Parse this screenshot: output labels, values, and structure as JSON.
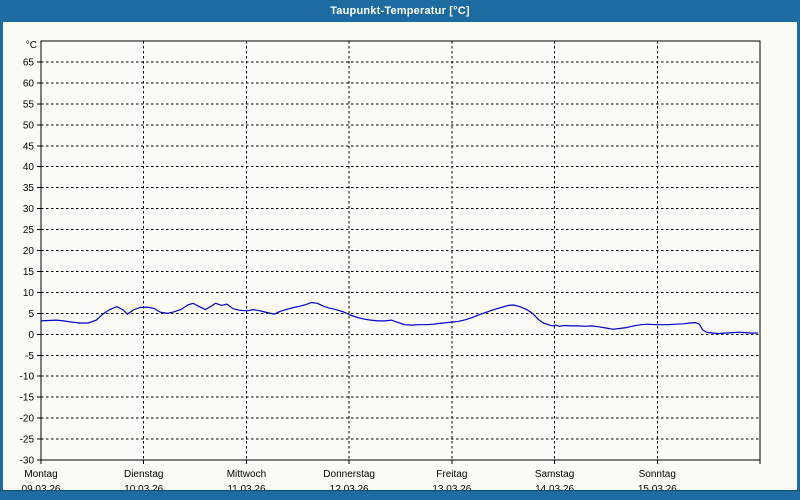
{
  "window": {
    "title": "Taupunkt-Temperatur [°C]",
    "titlebar_color": "#1c6ca2",
    "edge_color": "#1c6ca2",
    "strip_border_color": "#0e4a70",
    "background_color": "#fbfcf7"
  },
  "chart_data": {
    "type": "line",
    "title": "Taupunkt-Temperatur [°C]",
    "ylabel": "°C",
    "ylim": [
      -30,
      70
    ],
    "ytick_min": -30,
    "ytick_max": 65,
    "ytick_step": 5,
    "grid": "dashed",
    "legend_position": "none",
    "axis_color": "#000000",
    "xlim_days": [
      0,
      7
    ],
    "x_days": [
      {
        "name": "Montag",
        "date": "09.03.26"
      },
      {
        "name": "Dienstag",
        "date": "10.03.26"
      },
      {
        "name": "Mittwoch",
        "date": "11.03.26"
      },
      {
        "name": "Donnerstag",
        "date": "12.03.26"
      },
      {
        "name": "Freitag",
        "date": "13.03.26"
      },
      {
        "name": "Samstag",
        "date": "14.03.26"
      },
      {
        "name": "Sonntag",
        "date": "15.03.26"
      }
    ],
    "series": [
      {
        "name": "Taupunkt-Temperatur",
        "color": "#0000cc",
        "points_day_temp": [
          [
            0.0,
            3.2
          ],
          [
            0.07,
            3.3
          ],
          [
            0.15,
            3.4
          ],
          [
            0.22,
            3.2
          ],
          [
            0.3,
            2.9
          ],
          [
            0.38,
            2.7
          ],
          [
            0.46,
            2.7
          ],
          [
            0.54,
            3.4
          ],
          [
            0.6,
            4.8
          ],
          [
            0.67,
            5.9
          ],
          [
            0.74,
            6.6
          ],
          [
            0.8,
            5.8
          ],
          [
            0.84,
            4.8
          ],
          [
            0.9,
            5.8
          ],
          [
            0.96,
            6.4
          ],
          [
            1.03,
            6.5
          ],
          [
            1.1,
            6.2
          ],
          [
            1.16,
            5.3
          ],
          [
            1.23,
            5.0
          ],
          [
            1.3,
            5.4
          ],
          [
            1.36,
            5.9
          ],
          [
            1.43,
            7.0
          ],
          [
            1.48,
            7.4
          ],
          [
            1.54,
            6.6
          ],
          [
            1.6,
            5.9
          ],
          [
            1.65,
            6.6
          ],
          [
            1.7,
            7.4
          ],
          [
            1.76,
            6.9
          ],
          [
            1.81,
            7.2
          ],
          [
            1.87,
            6.1
          ],
          [
            1.94,
            5.7
          ],
          [
            2.01,
            5.6
          ],
          [
            2.07,
            5.9
          ],
          [
            2.13,
            5.6
          ],
          [
            2.2,
            5.2
          ],
          [
            2.27,
            4.8
          ],
          [
            2.33,
            5.5
          ],
          [
            2.4,
            6.0
          ],
          [
            2.46,
            6.4
          ],
          [
            2.52,
            6.7
          ],
          [
            2.58,
            7.1
          ],
          [
            2.63,
            7.6
          ],
          [
            2.69,
            7.4
          ],
          [
            2.75,
            6.7
          ],
          [
            2.8,
            6.3
          ],
          [
            2.87,
            5.9
          ],
          [
            2.94,
            5.4
          ],
          [
            3.01,
            4.6
          ],
          [
            3.08,
            4.0
          ],
          [
            3.15,
            3.6
          ],
          [
            3.21,
            3.4
          ],
          [
            3.28,
            3.2
          ],
          [
            3.35,
            3.2
          ],
          [
            3.41,
            3.4
          ],
          [
            3.48,
            2.8
          ],
          [
            3.54,
            2.3
          ],
          [
            3.61,
            2.2
          ],
          [
            3.68,
            2.3
          ],
          [
            3.75,
            2.3
          ],
          [
            3.82,
            2.4
          ],
          [
            3.88,
            2.6
          ],
          [
            3.95,
            2.8
          ],
          [
            4.0,
            2.9
          ],
          [
            4.07,
            3.1
          ],
          [
            4.14,
            3.5
          ],
          [
            4.21,
            4.1
          ],
          [
            4.27,
            4.7
          ],
          [
            4.34,
            5.3
          ],
          [
            4.41,
            5.9
          ],
          [
            4.48,
            6.4
          ],
          [
            4.55,
            6.9
          ],
          [
            4.6,
            7.0
          ],
          [
            4.66,
            6.6
          ],
          [
            4.73,
            5.9
          ],
          [
            4.79,
            4.9
          ],
          [
            4.84,
            3.6
          ],
          [
            4.89,
            2.7
          ],
          [
            4.94,
            2.3
          ],
          [
            4.98,
            2.0
          ],
          [
            5.01,
            2.2
          ],
          [
            5.05,
            1.9
          ],
          [
            5.09,
            2.1
          ],
          [
            5.16,
            2.0
          ],
          [
            5.23,
            2.0
          ],
          [
            5.3,
            1.9
          ],
          [
            5.36,
            2.0
          ],
          [
            5.43,
            1.8
          ],
          [
            5.5,
            1.5
          ],
          [
            5.57,
            1.2
          ],
          [
            5.64,
            1.4
          ],
          [
            5.7,
            1.6
          ],
          [
            5.77,
            2.0
          ],
          [
            5.84,
            2.3
          ],
          [
            5.91,
            2.4
          ],
          [
            5.98,
            2.3
          ],
          [
            6.05,
            2.3
          ],
          [
            6.11,
            2.3
          ],
          [
            6.18,
            2.4
          ],
          [
            6.25,
            2.5
          ],
          [
            6.32,
            2.7
          ],
          [
            6.37,
            2.8
          ],
          [
            6.41,
            2.4
          ],
          [
            6.44,
            1.1
          ],
          [
            6.48,
            0.5
          ],
          [
            6.53,
            0.3
          ],
          [
            6.6,
            0.2
          ],
          [
            6.67,
            0.3
          ],
          [
            6.74,
            0.4
          ],
          [
            6.8,
            0.5
          ],
          [
            6.85,
            0.4
          ],
          [
            6.91,
            0.3
          ],
          [
            6.98,
            0.3
          ]
        ]
      }
    ]
  }
}
